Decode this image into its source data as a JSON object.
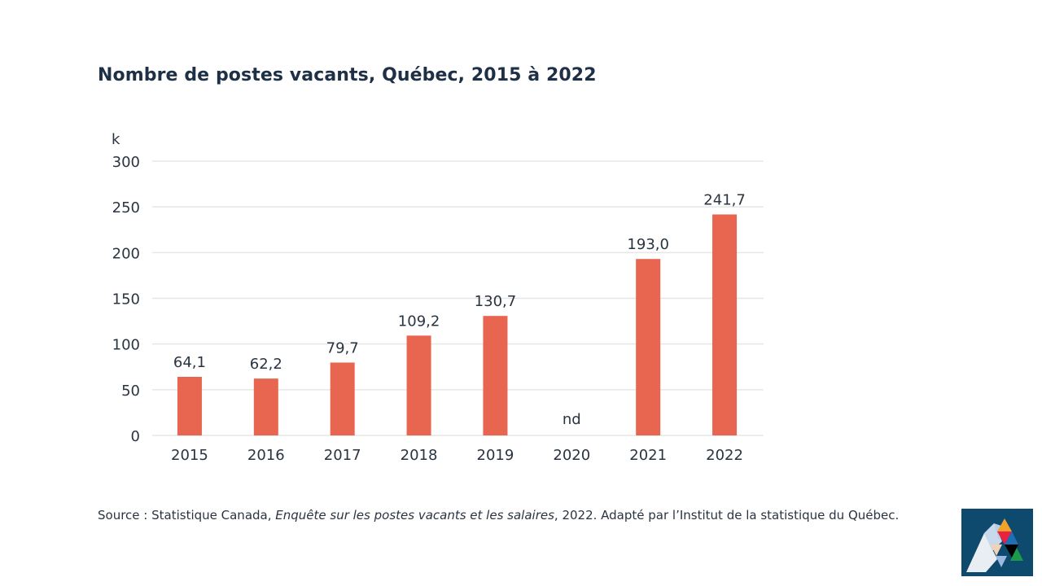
{
  "chart_data": {
    "type": "bar",
    "title": "Nombre de postes vacants, Québec, 2015 à 2022",
    "ylabel": "k",
    "xlabel": "",
    "categories": [
      "2015",
      "2016",
      "2017",
      "2018",
      "2019",
      "2020",
      "2021",
      "2022"
    ],
    "values": [
      64.1,
      62.2,
      79.7,
      109.2,
      130.7,
      null,
      193.0,
      241.7
    ],
    "data_labels": [
      "64,1",
      "62,2",
      "79,7",
      "109,2",
      "130,7",
      "nd",
      "193,0",
      "241,7"
    ],
    "ylim": [
      0,
      300
    ],
    "yticks": [
      0,
      50,
      100,
      150,
      200,
      250,
      300
    ],
    "grid": true,
    "bar_color": "#e8654f",
    "grid_color": "#e6e6e6"
  },
  "source": {
    "prefix": "Source : Statistique Canada, ",
    "publication": "Enquête sur les postes vacants et les salaires",
    "suffix": ", 2022. Adapté par l’Institut de la statistique du Québec."
  },
  "logo": {
    "name": "Institut de la statistique du Québec",
    "background": "#0e4a6e"
  }
}
